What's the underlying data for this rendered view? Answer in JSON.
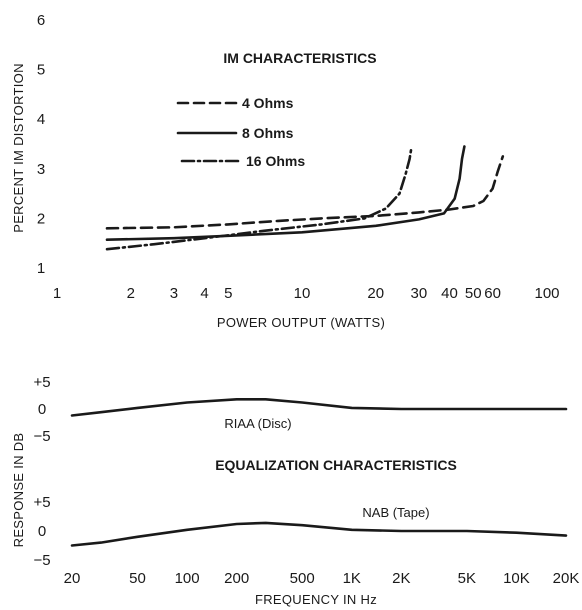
{
  "chart_data": [
    {
      "type": "line",
      "title": "IM CHARACTERISTICS",
      "xlabel": "POWER OUTPUT (WATTS)",
      "ylabel": "PERCENT IM DISTORTION",
      "xscale": "log",
      "xlim": [
        1,
        100
      ],
      "ylim": [
        1,
        6
      ],
      "xticks": [
        1,
        2,
        3,
        4,
        5,
        10,
        20,
        30,
        40,
        50,
        60,
        100
      ],
      "yticks": [
        1,
        2,
        3,
        4,
        5,
        6
      ],
      "legend_position": "top-left",
      "series": [
        {
          "name": "4 Ohms",
          "style": "dashed",
          "x": [
            1.6,
            3,
            5,
            8,
            12,
            20,
            30,
            40,
            50,
            55,
            60,
            63,
            66
          ],
          "y": [
            1.8,
            1.82,
            1.88,
            1.95,
            2.0,
            2.05,
            2.12,
            2.18,
            2.25,
            2.35,
            2.6,
            2.95,
            3.25
          ]
        },
        {
          "name": "8 Ohms",
          "style": "solid",
          "x": [
            1.6,
            3,
            5,
            10,
            20,
            30,
            38,
            42,
            44,
            45,
            46
          ],
          "y": [
            1.57,
            1.6,
            1.65,
            1.72,
            1.85,
            1.98,
            2.1,
            2.4,
            2.8,
            3.2,
            3.45
          ]
        },
        {
          "name": "16 Ohms",
          "style": "dash-dot",
          "x": [
            1.6,
            2.5,
            4,
            7,
            12,
            18,
            22,
            25,
            26.5,
            27.5,
            28
          ],
          "y": [
            1.38,
            1.48,
            1.6,
            1.75,
            1.88,
            2.0,
            2.2,
            2.5,
            2.9,
            3.2,
            3.45
          ]
        }
      ]
    },
    {
      "type": "line",
      "title": "EQUALIZATION CHARACTERISTICS",
      "xlabel": "FREQUENCY IN Hz",
      "ylabel": "RESPONSE IN DB",
      "xscale": "log",
      "xlim": [
        20,
        20000
      ],
      "xticks": [
        20,
        50,
        100,
        200,
        500,
        1000,
        2000,
        5000,
        10000,
        20000
      ],
      "xtick_labels": [
        "20",
        "50",
        "100",
        "200",
        "500",
        "1K",
        "2K",
        "5K",
        "10K",
        "20K"
      ],
      "panels": [
        {
          "yticks": [
            "+5",
            "0",
            "−5"
          ],
          "series": [
            {
              "name": "RIAA (Disc)",
              "x": [
                20,
                30,
                50,
                100,
                200,
                300,
                500,
                1000,
                2000,
                5000,
                10000,
                20000
              ],
              "y": [
                -1.2,
                -0.6,
                0.2,
                1.2,
                1.8,
                1.8,
                1.2,
                0.2,
                0,
                0,
                0,
                0
              ]
            }
          ]
        },
        {
          "yticks": [
            "+5",
            "0",
            "−5"
          ],
          "series": [
            {
              "name": "NAB (Tape)",
              "x": [
                20,
                30,
                50,
                100,
                200,
                300,
                500,
                1000,
                2000,
                5000,
                10000,
                20000
              ],
              "y": [
                -2.5,
                -2.0,
                -1.0,
                0.2,
                1.2,
                1.4,
                1.0,
                0.2,
                0,
                0,
                -0.3,
                -0.8
              ]
            }
          ]
        }
      ]
    }
  ]
}
